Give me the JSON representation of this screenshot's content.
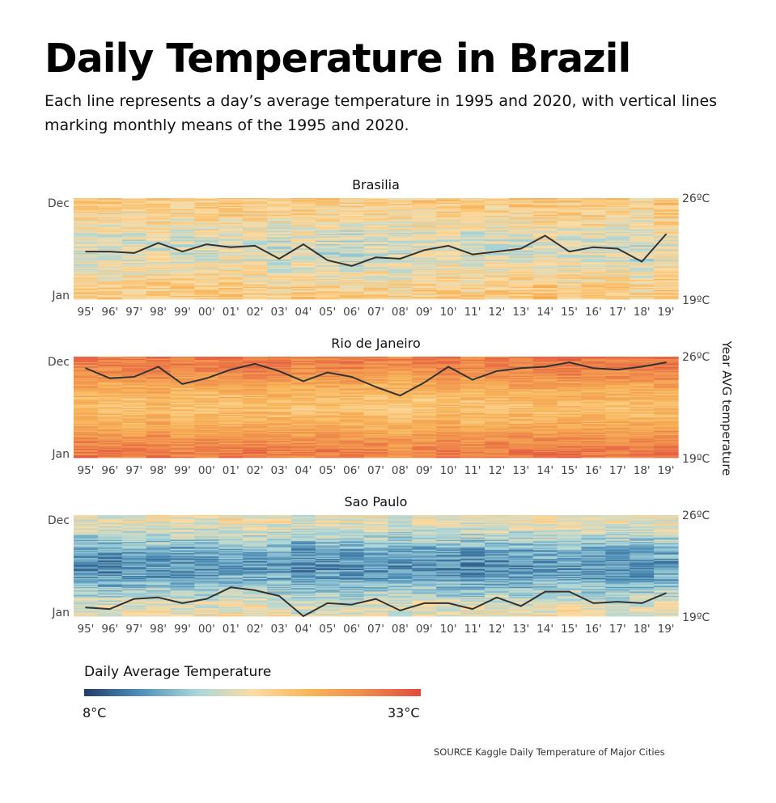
{
  "title": "Daily Temperature in Brazil",
  "subtitle": "Each line represents a day’s average temperature in 1995 and 2020, with vertical lines marking monthly means of the 1995 and 2020.",
  "source": "SOURCE Kaggle Daily Temperature of Major Cities",
  "legend": {
    "title": "Daily Average Temperature",
    "min_label": "8°C",
    "max_label": "33°C",
    "colors": [
      "#1f3d6b",
      "#4f8fb8",
      "#a9d6da",
      "#fcdca4",
      "#f8b65a",
      "#ef8b4c",
      "#e04b3d"
    ]
  },
  "chart_data": {
    "type": "heatmap",
    "xlabel": "",
    "ylabel_left": [
      "Jan",
      "Dec"
    ],
    "ylabel_right": "Year AVG temperature",
    "x": [
      "95'",
      "96'",
      "97'",
      "98'",
      "99'",
      "00'",
      "01'",
      "02'",
      "03'",
      "04'",
      "05'",
      "06'",
      "07'",
      "08'",
      "09'",
      "10'",
      "11'",
      "12'",
      "13'",
      "14'",
      "15'",
      "16'",
      "17'",
      "18'",
      "19'"
    ],
    "color_range": [
      8,
      33
    ],
    "line_range": [
      19,
      26
    ],
    "line_range_labels": [
      "19ºC",
      "26ºC"
    ],
    "panels": [
      {
        "name": "Brasilia",
        "year_avg": [
          22.3,
          22.3,
          22.2,
          22.9,
          22.3,
          22.8,
          22.6,
          22.7,
          21.8,
          22.8,
          21.7,
          21.3,
          21.9,
          21.8,
          22.4,
          22.7,
          22.1,
          22.3,
          22.5,
          23.4,
          22.3,
          22.6,
          22.5,
          21.6,
          23.5
        ],
        "base_temp": 20.5,
        "seasonal_amp": 2.0,
        "noise": 3.0
      },
      {
        "name": "Rio de Janeiro",
        "year_avg": [
          25.2,
          24.5,
          24.6,
          25.3,
          24.1,
          24.5,
          25.1,
          25.5,
          25.0,
          24.3,
          24.9,
          24.6,
          23.9,
          23.3,
          24.2,
          25.3,
          24.4,
          25.0,
          25.2,
          25.3,
          25.6,
          25.2,
          25.1,
          25.3,
          25.6
        ],
        "base_temp": 24.8,
        "seasonal_amp": 3.0,
        "noise": 2.2
      },
      {
        "name": "Sao Paulo",
        "year_avg": [
          19.6,
          19.5,
          20.2,
          20.3,
          19.9,
          20.2,
          21.0,
          20.8,
          20.4,
          19.0,
          19.9,
          19.8,
          20.2,
          19.4,
          19.9,
          19.9,
          19.5,
          20.3,
          19.7,
          20.7,
          20.7,
          19.9,
          20.0,
          19.9,
          20.6
        ],
        "base_temp": 18.0,
        "seasonal_amp": 3.5,
        "noise": 2.8
      }
    ]
  }
}
